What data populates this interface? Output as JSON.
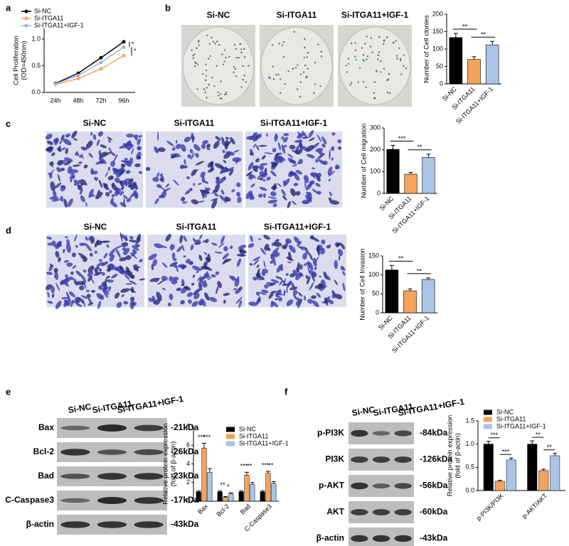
{
  "panel_labels": [
    "a",
    "b",
    "c",
    "d",
    "e",
    "f"
  ],
  "image_panels": [
    {
      "labels": [
        "Si-NC",
        "Si-ITGA11",
        "Si-ITGA11+IGF-1"
      ]
    },
    {
      "labels": [
        "Si-NC",
        "Si-ITGA11",
        "Si-ITGA11+IGF-1"
      ]
    },
    {
      "labels": [
        "Si-NC",
        "Si-ITGA11",
        "Si-ITGA11+IGF-1"
      ]
    }
  ],
  "blots": [
    {
      "lanes": [
        "Si-NC",
        "Si-ITGA11",
        "Si-ITGA11+IGF-1"
      ],
      "bands": [
        "Bax",
        "Bcl-2",
        "Bad",
        "C-Caspase3",
        "β-actin"
      ],
      "sizes": [
        "-21kDa",
        "-26kDa",
        "-23kDa",
        "-17kDa",
        "-43kDa"
      ]
    },
    {
      "lanes": [
        "Si-NC",
        "Si-ITGA11",
        "Si-ITGA11+IGF-1"
      ],
      "bands": [
        "p-PI3K",
        "PI3K",
        "p-AKT",
        "AKT",
        "β-actin"
      ],
      "sizes": [
        "-84kDa",
        "-126kDa",
        "-56kDa",
        "-60kDa",
        "-43kDa"
      ]
    }
  ],
  "chart_data": [
    {
      "type": "line",
      "y_label": [
        "Cell Proliferation",
        "(OD=450nm)"
      ],
      "categories": [
        "24h",
        "48h",
        "72h",
        "96h"
      ],
      "series": [
        {
          "name": "Si-NC",
          "color": "#000000",
          "values": [
            0.17,
            0.36,
            0.65,
            0.95
          ]
        },
        {
          "name": "Si-ITGA11",
          "color": "#f5a35a",
          "values": [
            0.15,
            0.26,
            0.44,
            0.69
          ]
        },
        {
          "name": "Si-ITGA11+IGF-1",
          "color": "#9db4e0",
          "values": [
            0.16,
            0.32,
            0.56,
            0.85
          ]
        }
      ],
      "ylim": [
        0,
        1.2
      ],
      "yticks": [
        {
          "value": 0,
          "label": "0.0"
        },
        0.5,
        {
          "value": 1,
          "label": "1.0"
        }
      ],
      "annotations": [
        "*",
        "*"
      ]
    },
    {
      "type": "bar",
      "y_label": [
        "Number of Cell clonies"
      ],
      "categories": [
        "Si-NC",
        "Si-ITGA11",
        "Si-ITGA11+IGF-1"
      ],
      "colors": [
        "#000000",
        "#f5a35a",
        "#a9c4e6"
      ],
      "values": [
        133,
        70,
        112
      ],
      "errors": [
        12,
        8,
        10
      ],
      "ylim": [
        0,
        200
      ],
      "yticks": [
        0,
        50,
        100,
        150,
        200
      ],
      "annotations": [
        "**",
        "**"
      ]
    },
    {
      "type": "bar",
      "y_label": [
        "Number of Cell migration"
      ],
      "categories": [
        "Si-NC",
        "Si-ITGA11",
        "Si-ITGA11+IGF-1"
      ],
      "colors": [
        "#000000",
        "#f5a35a",
        "#a9c4e6"
      ],
      "values": [
        202,
        88,
        165
      ],
      "errors": [
        18,
        8,
        15
      ],
      "ylim": [
        0,
        300
      ],
      "yticks": [
        0,
        100,
        200,
        300
      ],
      "annotations": [
        "***",
        "**"
      ]
    },
    {
      "type": "bar",
      "y_label": [
        "Number of Cell Invasion"
      ],
      "categories": [
        "Si-NC",
        "Si-ITGA11",
        "Si-ITGA11+IGF-1"
      ],
      "colors": [
        "#000000",
        "#f5a35a",
        "#a9c4e6"
      ],
      "values": [
        113,
        58,
        88
      ],
      "errors": [
        12,
        5,
        4
      ],
      "ylim": [
        0,
        150
      ],
      "yticks": [
        0,
        50,
        100,
        150
      ],
      "annotations": [
        "**",
        "**"
      ]
    },
    {
      "type": "grouped_bar",
      "y_label": [
        "Relative protein expression",
        "(fold of β-actin)"
      ],
      "categories": [
        "Bax",
        "Bcl-2",
        "Bad",
        "C-Caspase3"
      ],
      "series": [
        {
          "name": "Si-NC",
          "color": "#000000",
          "values": [
            1,
            1,
            1,
            1
          ],
          "errors": [
            0.1,
            0.1,
            0.1,
            0.1
          ]
        },
        {
          "name": "Si-ITGA11",
          "color": "#f5a35a",
          "values": [
            5.7,
            0.4,
            2.8,
            3.0
          ],
          "errors": [
            0.5,
            0.1,
            0.3,
            0.2
          ]
        },
        {
          "name": "Si-ITGA11+IGF-1",
          "color": "#a9c4e6",
          "values": [
            3.1,
            0.8,
            1.8,
            1.9
          ],
          "errors": [
            0.4,
            0.1,
            0.2,
            0.2
          ]
        }
      ],
      "ylim": [
        0,
        8
      ],
      "yticks": [
        0,
        2,
        4,
        6,
        8
      ],
      "annotations": [
        [
          "***",
          "***"
        ],
        [
          "**",
          "*"
        ],
        [
          "***",
          "**"
        ],
        [
          "***",
          "**"
        ]
      ]
    },
    {
      "type": "grouped_bar",
      "y_label": [
        "Relative protein expression",
        "(fold of β-actin)"
      ],
      "categories": [
        "p-PI3K/PI3K",
        "p-AKT/AKT"
      ],
      "series": [
        {
          "name": "Si-NC",
          "color": "#000000",
          "values": [
            1.0,
            1.0
          ],
          "errors": [
            0.06,
            0.07
          ]
        },
        {
          "name": "Si-ITGA11",
          "color": "#f5a35a",
          "values": [
            0.2,
            0.43
          ],
          "errors": [
            0.02,
            0.03
          ]
        },
        {
          "name": "Si-ITGA11+IGF-1",
          "color": "#a9c4e6",
          "values": [
            0.66,
            0.75
          ],
          "errors": [
            0.04,
            0.05
          ]
        }
      ],
      "ylim": [
        0,
        1.5
      ],
      "yticks": [
        {
          "value": 0,
          "label": "0.0"
        },
        0.5,
        {
          "value": 1,
          "label": "1.0"
        },
        1.5
      ],
      "annotations": [
        [
          "***",
          "***"
        ],
        [
          "**",
          "**"
        ]
      ]
    }
  ]
}
